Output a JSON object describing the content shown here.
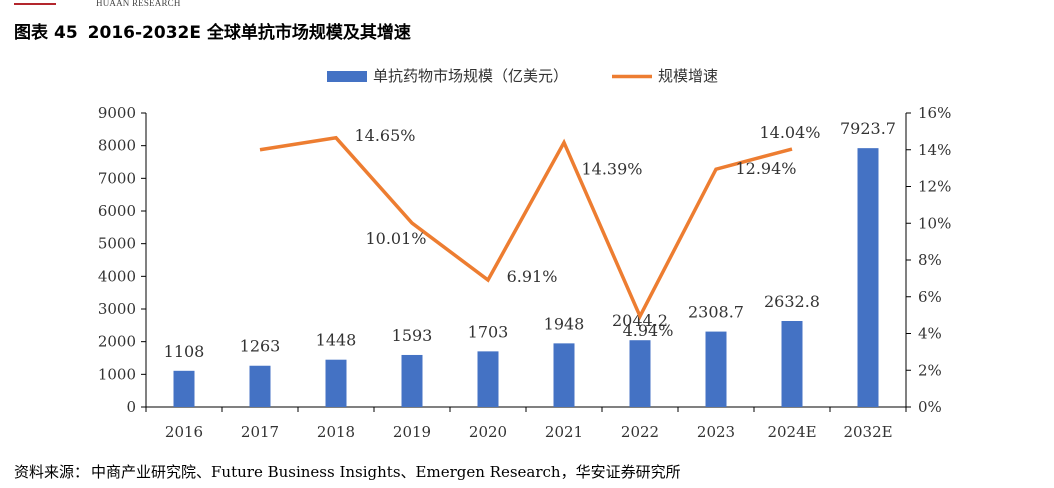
{
  "header": {
    "brand": "HUAAN RESEARCH"
  },
  "figure": {
    "label": "图表",
    "number": "45",
    "title": "2016-2032E 全球单抗市场规模及其增速"
  },
  "colors": {
    "bar": "#4472C4",
    "line": "#ED7D31",
    "brand_red": "#b3262d"
  },
  "chart_data": {
    "type": "bar",
    "categories": [
      "2016",
      "2017",
      "2018",
      "2019",
      "2020",
      "2021",
      "2022",
      "2023",
      "2024E",
      "2032E"
    ],
    "series": [
      {
        "name": "单抗药物市场规模（亿美元）",
        "type": "bar",
        "axis": "left",
        "values": [
          1108,
          1263,
          1448,
          1593,
          1703,
          1948,
          2044.2,
          2308.7,
          2632.8,
          7923.7
        ],
        "labels": [
          "1108",
          "1263",
          "1448",
          "1593",
          "1703",
          "1948",
          "2044.2",
          "2308.7",
          "2632.8",
          "7923.7"
        ]
      },
      {
        "name": "规模增速",
        "type": "line",
        "axis": "right",
        "values": [
          null,
          14.0,
          14.65,
          10.01,
          6.91,
          14.39,
          4.94,
          12.94,
          14.04,
          null
        ],
        "labels": [
          null,
          null,
          "14.65%",
          "10.01%",
          "6.91%",
          "14.39%",
          "4.94%",
          "12.94%",
          "14.04%",
          null
        ]
      }
    ],
    "y_left": {
      "min": 0,
      "max": 9000,
      "step": 1000,
      "ticks": [
        "0",
        "1000",
        "2000",
        "3000",
        "4000",
        "5000",
        "6000",
        "7000",
        "8000",
        "9000"
      ]
    },
    "y_right": {
      "min": 0,
      "max": 16,
      "step": 2,
      "ticks": [
        "0%",
        "2%",
        "4%",
        "6%",
        "8%",
        "10%",
        "12%",
        "14%",
        "16%"
      ]
    },
    "legend_position": "top-center",
    "grid": false
  },
  "source": {
    "label": "资料来源：",
    "text": "中商产业研究院、Future Business Insights、Emergen Research，华安证券研究所"
  }
}
